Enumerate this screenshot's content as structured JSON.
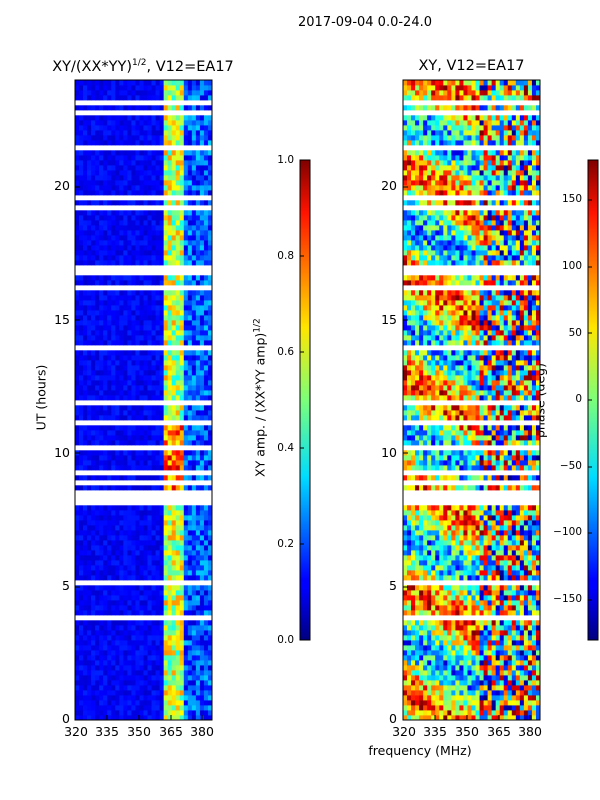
{
  "suptitle": "2017-09-04 0.0-24.0",
  "chart_data": [
    {
      "type": "heatmap",
      "title_text": "XY/(XX*YY)",
      "title_sup": "1/2",
      "title_rest": ", V12=EA17",
      "xlabel": "",
      "ylabel": "UT (hours)",
      "xlim": [
        320,
        384
      ],
      "ylim": [
        0,
        24
      ],
      "xticks": [
        320,
        335,
        350,
        365,
        380
      ],
      "yticks": [
        0,
        5,
        10,
        15,
        20
      ],
      "colorbar": {
        "label_text": "XY amp. / (XX*YY amp)",
        "label_sup": "1/2",
        "range": [
          0.0,
          1.0
        ],
        "ticks": [
          "0.0",
          "0.2",
          "0.4",
          "0.6",
          "0.8",
          "1.0"
        ],
        "colormap": "jet"
      },
      "flagged_gaps_hours": [
        [
          8.0,
          8.6
        ],
        [
          16.6,
          17.1
        ],
        [
          5.0,
          5.3
        ],
        [
          10.2,
          10.3
        ],
        [
          22.6,
          22.8
        ]
      ],
      "high_amplitude_band_mhz": [
        362,
        370
      ]
    },
    {
      "type": "heatmap",
      "title": "XY, V12=EA17",
      "xlabel": "frequency (MHz)",
      "ylabel": "",
      "xlim": [
        320,
        384
      ],
      "ylim": [
        0,
        24
      ],
      "xticks": [
        320,
        335,
        350,
        365,
        380
      ],
      "yticks": [
        0,
        5,
        10,
        15,
        20
      ],
      "colorbar": {
        "label": "phase (deg)",
        "range": [
          -180,
          180
        ],
        "ticks": [
          "150",
          "100",
          "50",
          "0",
          "−50",
          "−100",
          "−150"
        ],
        "colormap": "jet"
      },
      "flagged_gaps_hours": [
        [
          8.0,
          8.6
        ],
        [
          16.6,
          17.1
        ],
        [
          5.0,
          5.3
        ],
        [
          22.6,
          22.8
        ]
      ]
    }
  ]
}
